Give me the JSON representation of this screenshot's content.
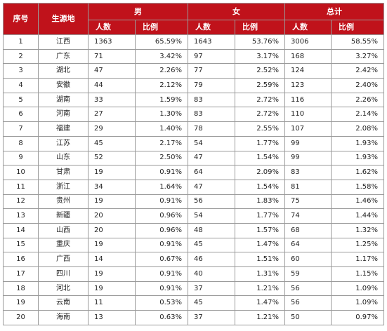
{
  "headers": {
    "seq": "序号",
    "origin": "生源地",
    "male": "男",
    "female": "女",
    "total": "总计",
    "count": "人数",
    "ratio": "比例"
  },
  "rows": [
    {
      "seq": "1",
      "origin": "江西",
      "m_count": "1363",
      "m_ratio": "65.59%",
      "f_count": "1643",
      "f_ratio": "53.76%",
      "t_count": "3006",
      "t_ratio": "58.55%"
    },
    {
      "seq": "2",
      "origin": "广东",
      "m_count": "71",
      "m_ratio": "3.42%",
      "f_count": "97",
      "f_ratio": "3.17%",
      "t_count": "168",
      "t_ratio": "3.27%"
    },
    {
      "seq": "3",
      "origin": "湖北",
      "m_count": "47",
      "m_ratio": "2.26%",
      "f_count": "77",
      "f_ratio": "2.52%",
      "t_count": "124",
      "t_ratio": "2.42%"
    },
    {
      "seq": "4",
      "origin": "安徽",
      "m_count": "44",
      "m_ratio": "2.12%",
      "f_count": "79",
      "f_ratio": "2.59%",
      "t_count": "123",
      "t_ratio": "2.40%"
    },
    {
      "seq": "5",
      "origin": "湖南",
      "m_count": "33",
      "m_ratio": "1.59%",
      "f_count": "83",
      "f_ratio": "2.72%",
      "t_count": "116",
      "t_ratio": "2.26%"
    },
    {
      "seq": "6",
      "origin": "河南",
      "m_count": "27",
      "m_ratio": "1.30%",
      "f_count": "83",
      "f_ratio": "2.72%",
      "t_count": "110",
      "t_ratio": "2.14%"
    },
    {
      "seq": "7",
      "origin": "福建",
      "m_count": "29",
      "m_ratio": "1.40%",
      "f_count": "78",
      "f_ratio": "2.55%",
      "t_count": "107",
      "t_ratio": "2.08%"
    },
    {
      "seq": "8",
      "origin": "江苏",
      "m_count": "45",
      "m_ratio": "2.17%",
      "f_count": "54",
      "f_ratio": "1.77%",
      "t_count": "99",
      "t_ratio": "1.93%"
    },
    {
      "seq": "9",
      "origin": "山东",
      "m_count": "52",
      "m_ratio": "2.50%",
      "f_count": "47",
      "f_ratio": "1.54%",
      "t_count": "99",
      "t_ratio": "1.93%"
    },
    {
      "seq": "10",
      "origin": "甘肃",
      "m_count": "19",
      "m_ratio": "0.91%",
      "f_count": "64",
      "f_ratio": "2.09%",
      "t_count": "83",
      "t_ratio": "1.62%"
    },
    {
      "seq": "11",
      "origin": "浙江",
      "m_count": "34",
      "m_ratio": "1.64%",
      "f_count": "47",
      "f_ratio": "1.54%",
      "t_count": "81",
      "t_ratio": "1.58%"
    },
    {
      "seq": "12",
      "origin": "贵州",
      "m_count": "19",
      "m_ratio": "0.91%",
      "f_count": "56",
      "f_ratio": "1.83%",
      "t_count": "75",
      "t_ratio": "1.46%"
    },
    {
      "seq": "13",
      "origin": "新疆",
      "m_count": "20",
      "m_ratio": "0.96%",
      "f_count": "54",
      "f_ratio": "1.77%",
      "t_count": "74",
      "t_ratio": "1.44%"
    },
    {
      "seq": "14",
      "origin": "山西",
      "m_count": "20",
      "m_ratio": "0.96%",
      "f_count": "48",
      "f_ratio": "1.57%",
      "t_count": "68",
      "t_ratio": "1.32%"
    },
    {
      "seq": "15",
      "origin": "重庆",
      "m_count": "19",
      "m_ratio": "0.91%",
      "f_count": "45",
      "f_ratio": "1.47%",
      "t_count": "64",
      "t_ratio": "1.25%"
    },
    {
      "seq": "16",
      "origin": "广西",
      "m_count": "14",
      "m_ratio": "0.67%",
      "f_count": "46",
      "f_ratio": "1.51%",
      "t_count": "60",
      "t_ratio": "1.17%"
    },
    {
      "seq": "17",
      "origin": "四川",
      "m_count": "19",
      "m_ratio": "0.91%",
      "f_count": "40",
      "f_ratio": "1.31%",
      "t_count": "59",
      "t_ratio": "1.15%"
    },
    {
      "seq": "18",
      "origin": "河北",
      "m_count": "19",
      "m_ratio": "0.91%",
      "f_count": "37",
      "f_ratio": "1.21%",
      "t_count": "56",
      "t_ratio": "1.09%"
    },
    {
      "seq": "19",
      "origin": "云南",
      "m_count": "11",
      "m_ratio": "0.53%",
      "f_count": "45",
      "f_ratio": "1.47%",
      "t_count": "56",
      "t_ratio": "1.09%"
    },
    {
      "seq": "20",
      "origin": "海南",
      "m_count": "13",
      "m_ratio": "0.63%",
      "f_count": "37",
      "f_ratio": "1.21%",
      "t_count": "50",
      "t_ratio": "0.97%"
    }
  ]
}
